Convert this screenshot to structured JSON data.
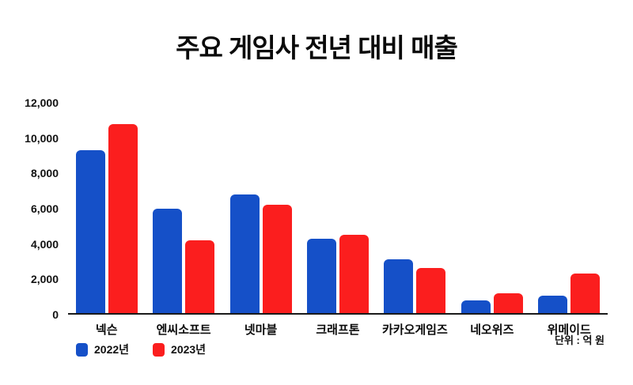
{
  "title": "주요 게임사 전년 대비 매출",
  "unit_label": "단위 : 억 원",
  "colors": {
    "series_2022": "#1550c8",
    "series_2023": "#fb1e1e",
    "axis": "#1a1a1a",
    "background": "#ffffff",
    "text": "#0a0a0a"
  },
  "legend": {
    "items": [
      {
        "label": "2022년",
        "color": "#1550c8"
      },
      {
        "label": "2023년",
        "color": "#fb1e1e"
      }
    ]
  },
  "chart_data": {
    "type": "bar",
    "title": "주요 게임사 전년 대비 매출",
    "categories": [
      "넥슨",
      "엔씨소프트",
      "넷마블",
      "크래프톤",
      "카카오게임즈",
      "네오위즈",
      "위메이드"
    ],
    "series": [
      {
        "name": "2022년",
        "color": "#1550c8",
        "values": [
          9300,
          5950,
          6750,
          4250,
          3050,
          700,
          1000
        ]
      },
      {
        "name": "2023년",
        "color": "#fb1e1e",
        "values": [
          10800,
          4150,
          6200,
          4450,
          2550,
          1150,
          2250
        ]
      }
    ],
    "xlabel": "",
    "ylabel": "",
    "unit": "억 원",
    "ylim": [
      0,
      12000
    ],
    "yticks": [
      0,
      2000,
      4000,
      6000,
      8000,
      10000,
      12000
    ],
    "grid": false,
    "legend_position": "bottom-left"
  }
}
